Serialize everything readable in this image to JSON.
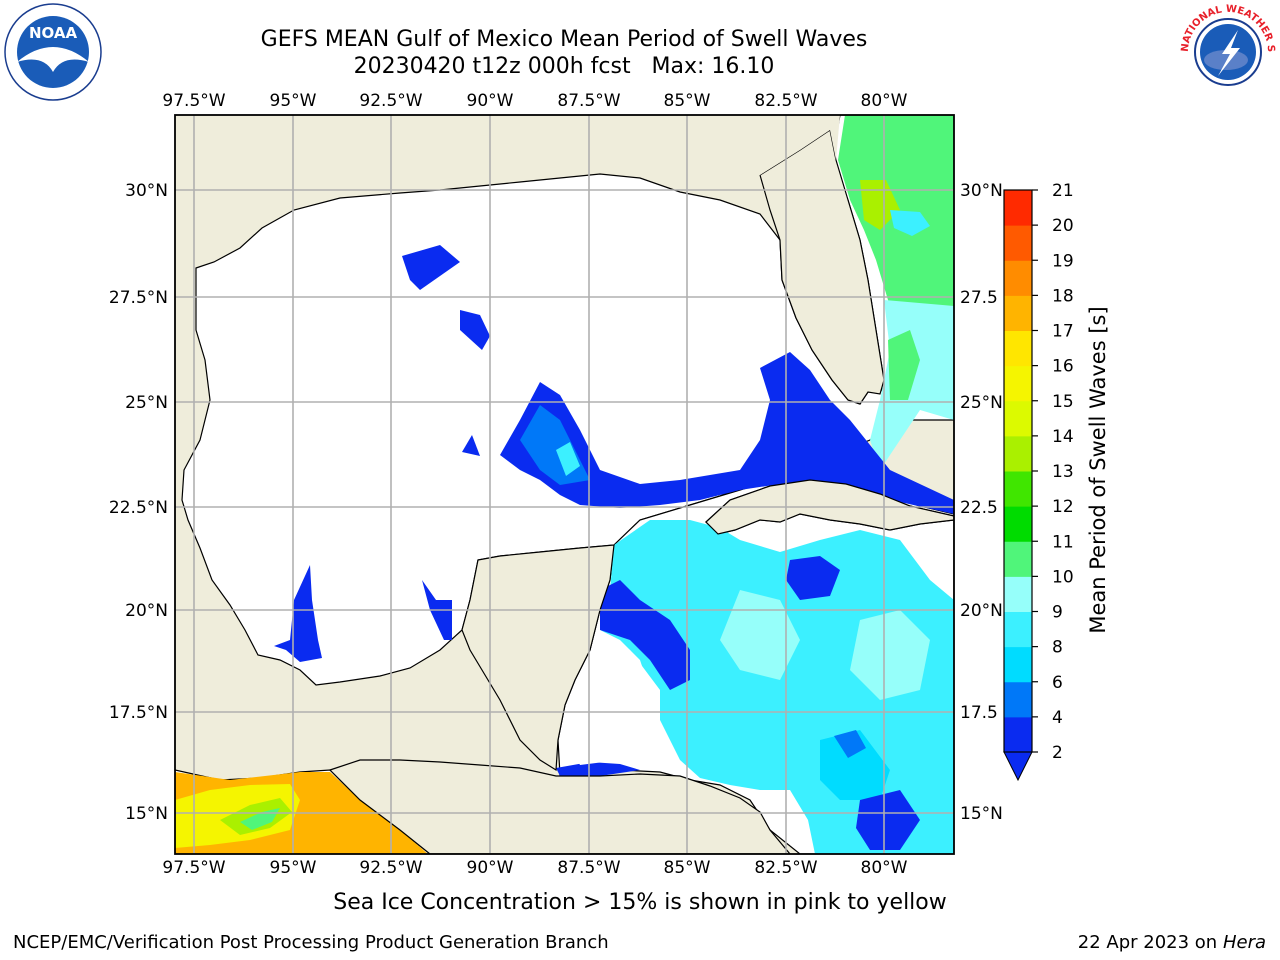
{
  "title": {
    "line1": "GEFS MEAN Gulf of Mexico Mean Period of Swell Waves",
    "line2": "20230420 t12z 000h fcst   Max: 16.10"
  },
  "logos": {
    "left": {
      "icon": "noaa-logo",
      "text": "NOAA"
    },
    "right": {
      "icon": "national-weather-service-logo",
      "text": "NATIONAL WEATHER SERVICE"
    }
  },
  "map": {
    "lon_labels": [
      "97.5°W",
      "95°W",
      "92.5°W",
      "90°W",
      "87.5°W",
      "85°W",
      "82.5°W",
      "80°W"
    ],
    "lat_labels_left": [
      "30°N",
      "27.5°N",
      "25°N",
      "22.5°N",
      "20°N",
      "17.5°N",
      "15°N"
    ],
    "lat_labels_right": [
      "30°N",
      "27.5",
      "25°N",
      "22.5",
      "20°N",
      "17.5",
      "15°N"
    ],
    "land_color": "#efeddb",
    "ocean_color": "#ffffff",
    "grid_color": "#b0b0b0"
  },
  "colorbar": {
    "label": "Mean Period of Swell Waves [s]",
    "ticks": [
      "2",
      "4",
      "6",
      "8",
      "9",
      "10",
      "11",
      "12",
      "13",
      "14",
      "15",
      "16",
      "17",
      "18",
      "19",
      "20",
      "21"
    ],
    "colors": [
      "#0a2bf0",
      "#0078f8",
      "#00dcff",
      "#3cf0ff",
      "#96fffa",
      "#50f57a",
      "#00dc00",
      "#40e600",
      "#aaf000",
      "#dcfa00",
      "#f5f500",
      "#ffe600",
      "#ffb400",
      "#ff8c00",
      "#ff5a00",
      "#ff2a00",
      "#ff0000"
    ]
  },
  "footer": {
    "note": "Sea Ice Concentration > 15% is shown in pink to yellow",
    "credit": "NCEP/EMC/Verification Post Processing Product Generation Branch",
    "date_prefix": "22 Apr 2023 on ",
    "machine": "Hera"
  }
}
